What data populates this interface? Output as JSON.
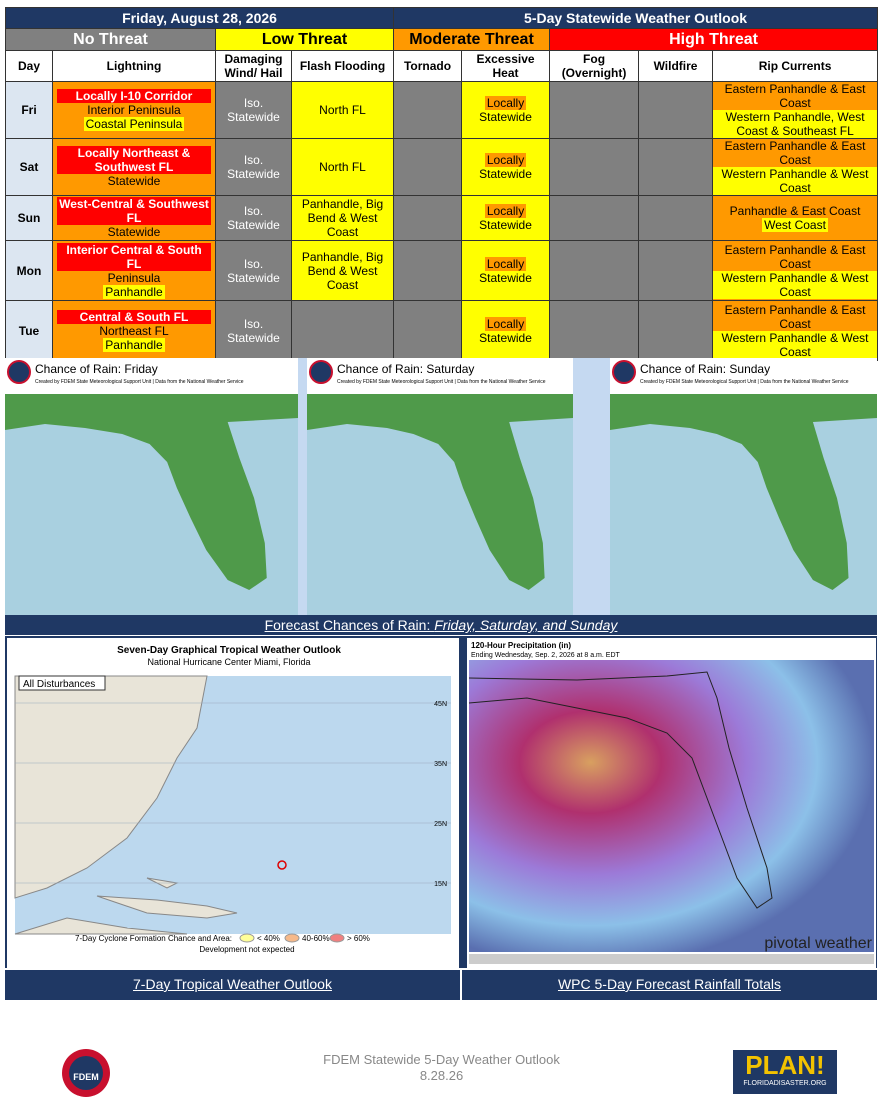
{
  "header": {
    "date": "Friday, August 28, 2026",
    "title": "5-Day Statewide Weather Outlook"
  },
  "legend": [
    {
      "label": "No Threat",
      "color": "#808080"
    },
    {
      "label": "Low Threat",
      "color": "#ffff00"
    },
    {
      "label": "Moderate Threat",
      "color": "#ff9900"
    },
    {
      "label": "High Threat",
      "color": "#ff0000"
    }
  ],
  "columns": [
    "Day",
    "Lightning",
    "Damaging Wind/ Hail",
    "Flash Flooding",
    "Tornado",
    "Excessive Heat",
    "Fog (Overnight)",
    "Wildfire",
    "Rip Currents"
  ],
  "rows": [
    {
      "day": "Fri",
      "cells": [
        {
          "level": 2,
          "lines": [
            {
              "text": "Locally I-10 Corridor",
              "level": 3
            },
            {
              "text": "Interior Peninsula",
              "level": 2
            },
            {
              "text": "Coastal Peninsula",
              "level": 1
            }
          ]
        },
        {
          "level": 0,
          "lines": [
            {
              "text": "Iso. Statewide",
              "level": 0
            }
          ]
        },
        {
          "level": 1,
          "lines": [
            {
              "text": "North FL",
              "level": 1
            }
          ]
        },
        {
          "level": 0,
          "lines": []
        },
        {
          "level": 1,
          "lines": [
            {
              "text": "Locally",
              "level": 2
            },
            {
              "text": "Statewide",
              "level": 1
            }
          ]
        },
        {
          "level": 0,
          "lines": []
        },
        {
          "level": 0,
          "lines": []
        },
        {
          "level": 2,
          "lines": [
            {
              "text": "Eastern Panhandle & East Coast",
              "level": 2
            },
            {
              "text": "Western Panhandle, West Coast & Southeast FL",
              "level": 1
            }
          ]
        }
      ]
    },
    {
      "day": "Sat",
      "cells": [
        {
          "level": 2,
          "lines": [
            {
              "text": "Locally Northeast & Southwest FL",
              "level": 3
            },
            {
              "text": "Statewide",
              "level": 2
            }
          ]
        },
        {
          "level": 0,
          "lines": [
            {
              "text": "Iso. Statewide",
              "level": 0
            }
          ]
        },
        {
          "level": 1,
          "lines": [
            {
              "text": "North FL",
              "level": 1
            }
          ]
        },
        {
          "level": 0,
          "lines": []
        },
        {
          "level": 1,
          "lines": [
            {
              "text": "Locally",
              "level": 2
            },
            {
              "text": "Statewide",
              "level": 1
            }
          ]
        },
        {
          "level": 0,
          "lines": []
        },
        {
          "level": 0,
          "lines": []
        },
        {
          "level": 2,
          "lines": [
            {
              "text": "Eastern Panhandle & East Coast",
              "level": 2
            },
            {
              "text": "Western Panhandle & West Coast",
              "level": 1
            }
          ]
        }
      ]
    },
    {
      "day": "Sun",
      "cells": [
        {
          "level": 2,
          "lines": [
            {
              "text": "West-Central & Southwest FL",
              "level": 3
            },
            {
              "text": "Statewide",
              "level": 2
            }
          ]
        },
        {
          "level": 0,
          "lines": [
            {
              "text": "Iso. Statewide",
              "level": 0
            }
          ]
        },
        {
          "level": 1,
          "lines": [
            {
              "text": "Panhandle, Big Bend & West Coast",
              "level": 1
            }
          ]
        },
        {
          "level": 0,
          "lines": []
        },
        {
          "level": 1,
          "lines": [
            {
              "text": "Locally",
              "level": 2
            },
            {
              "text": "Statewide",
              "level": 1
            }
          ]
        },
        {
          "level": 0,
          "lines": []
        },
        {
          "level": 0,
          "lines": []
        },
        {
          "level": 2,
          "lines": [
            {
              "text": "Panhandle & East Coast",
              "level": 2
            },
            {
              "text": "West Coast",
              "level": 1
            }
          ]
        }
      ]
    },
    {
      "day": "Mon",
      "cells": [
        {
          "level": 2,
          "lines": [
            {
              "text": "Interior Central & South FL",
              "level": 3
            },
            {
              "text": "Peninsula",
              "level": 2
            },
            {
              "text": "Panhandle",
              "level": 1
            }
          ]
        },
        {
          "level": 0,
          "lines": [
            {
              "text": "Iso. Statewide",
              "level": 0
            }
          ]
        },
        {
          "level": 1,
          "lines": [
            {
              "text": "Panhandle, Big Bend & West Coast",
              "level": 1
            }
          ]
        },
        {
          "level": 0,
          "lines": []
        },
        {
          "level": 1,
          "lines": [
            {
              "text": "Locally",
              "level": 2
            },
            {
              "text": "Statewide",
              "level": 1
            }
          ]
        },
        {
          "level": 0,
          "lines": []
        },
        {
          "level": 0,
          "lines": []
        },
        {
          "level": 2,
          "lines": [
            {
              "text": "Eastern Panhandle & East Coast",
              "level": 2
            },
            {
              "text": "Western Panhandle & West Coast",
              "level": 1
            }
          ]
        }
      ]
    },
    {
      "day": "Tue",
      "cells": [
        {
          "level": 2,
          "lines": [
            {
              "text": "Central & South FL",
              "level": 3
            },
            {
              "text": "Northeast FL",
              "level": 2
            },
            {
              "text": "Panhandle",
              "level": 1
            }
          ]
        },
        {
          "level": 0,
          "lines": [
            {
              "text": "Iso. Statewide",
              "level": 0
            }
          ]
        },
        {
          "level": 0,
          "lines": []
        },
        {
          "level": 0,
          "lines": []
        },
        {
          "level": 1,
          "lines": [
            {
              "text": "Locally",
              "level": 2
            },
            {
              "text": "Statewide",
              "level": 1
            }
          ]
        },
        {
          "level": 0,
          "lines": []
        },
        {
          "level": 0,
          "lines": []
        },
        {
          "level": 2,
          "lines": [
            {
              "text": "Eastern Panhandle & East Coast",
              "level": 2
            },
            {
              "text": "Western Panhandle & West Coast",
              "level": 1
            }
          ]
        }
      ]
    }
  ],
  "rain_maps": {
    "panels": [
      {
        "title": "Chance of Rain: Friday"
      },
      {
        "title": "Chance of Rain: Saturday"
      },
      {
        "title": "Chance of Rain: Sunday"
      }
    ],
    "credit": "Created by FDEM State Meteorological Support Unit | Data from the National Weather Service",
    "caption_lead": "Forecast Chances of Rain: ",
    "caption_days": "Friday, Saturday, and Sunday"
  },
  "tropical": {
    "title": "Seven-Day Graphical Tropical Weather Outlook",
    "subtitle": "National Hurricane Center  Miami, Florida",
    "filter": "All Disturbances",
    "lat_labels": [
      "45N",
      "35N",
      "25N",
      "15N"
    ],
    "legend_title": "7-Day Cyclone Formation Chance and Area:",
    "chances": [
      "< 40%",
      "40-60%",
      "> 60%"
    ],
    "note": "Development not expected",
    "caption": "7-Day Tropical Weather Outlook"
  },
  "precip": {
    "title": "120-Hour Precipitation (in)",
    "subtitle": "Ending Wednesday, Sep. 2, 2026 at 8 a.m. EDT",
    "brand": "pivotal weather",
    "caption": "WPC 5-Day Forecast Rainfall Totals"
  },
  "footer": {
    "line1": "FDEM Statewide 5-Day Weather Outlook",
    "line2": "8.28.26",
    "logo_left": "FDEM",
    "logo_right": "PLAN!",
    "logo_right_sub": "FLORIDADISASTER.ORG"
  }
}
